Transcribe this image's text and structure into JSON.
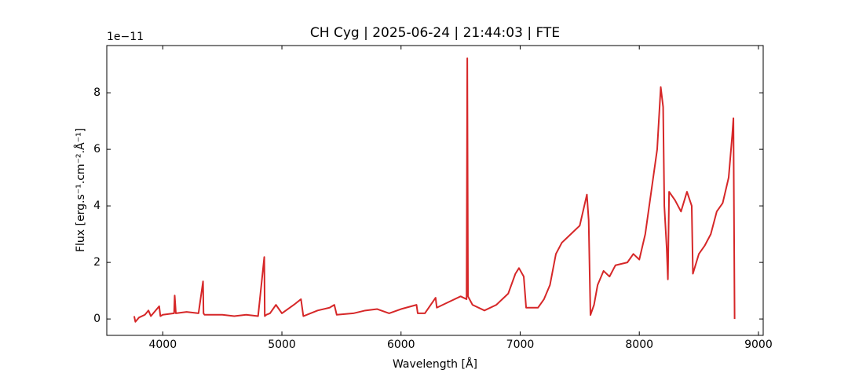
{
  "chart_data": {
    "type": "line",
    "title": "CH Cyg | 2025-06-24 | 21:44:03 | FTE",
    "x_label": "Wavelength [Å]",
    "y_label": "Flux [erg.s⁻¹.cm⁻².Å⁻¹]",
    "y_offset_label": "1e−11",
    "color": "#d62728",
    "x": [
      3760,
      3770,
      3800,
      3850,
      3880,
      3900,
      3970,
      3980,
      4000,
      4095,
      4100,
      4110,
      4200,
      4300,
      4338,
      4342,
      4350,
      4400,
      4500,
      4600,
      4700,
      4800,
      4852,
      4856,
      4870,
      4900,
      4950,
      5000,
      5100,
      5160,
      5180,
      5300,
      5400,
      5440,
      5460,
      5600,
      5700,
      5800,
      5900,
      6000,
      6130,
      6140,
      6200,
      6290,
      6300,
      6400,
      6500,
      6550,
      6556,
      6562,
      6600,
      6700,
      6800,
      6900,
      6960,
      6990,
      7030,
      7050,
      7100,
      7150,
      7200,
      7250,
      7300,
      7350,
      7400,
      7450,
      7500,
      7560,
      7575,
      7590,
      7620,
      7650,
      7700,
      7750,
      7800,
      7900,
      7950,
      8000,
      8050,
      8100,
      8150,
      8180,
      8200,
      8210,
      8230,
      8240,
      8250,
      8300,
      8350,
      8400,
      8440,
      8450,
      8500,
      8550,
      8600,
      8650,
      8700,
      8750,
      8780,
      8790,
      8800
    ],
    "values": [
      0.1,
      -0.1,
      0.05,
      0.15,
      0.3,
      0.1,
      0.45,
      0.1,
      0.15,
      0.2,
      0.83,
      0.2,
      0.25,
      0.2,
      1.33,
      0.2,
      0.15,
      0.15,
      0.15,
      0.1,
      0.15,
      0.1,
      2.19,
      0.1,
      0.15,
      0.2,
      0.5,
      0.2,
      0.5,
      0.7,
      0.1,
      0.3,
      0.4,
      0.5,
      0.15,
      0.2,
      0.3,
      0.35,
      0.2,
      0.35,
      0.5,
      0.2,
      0.2,
      0.75,
      0.4,
      0.6,
      0.8,
      0.7,
      9.22,
      0.8,
      0.5,
      0.3,
      0.5,
      0.9,
      1.6,
      1.8,
      1.5,
      0.4,
      0.4,
      0.4,
      0.7,
      1.2,
      2.3,
      2.7,
      2.9,
      3.1,
      3.3,
      4.4,
      3.5,
      0.14,
      0.5,
      1.2,
      1.7,
      1.5,
      1.9,
      2.0,
      2.3,
      2.1,
      3.0,
      4.5,
      6.0,
      8.2,
      7.5,
      4.0,
      2.5,
      1.4,
      4.5,
      4.2,
      3.8,
      4.5,
      4.0,
      1.6,
      2.3,
      2.6,
      3.0,
      3.8,
      4.1,
      5.0,
      6.5,
      7.1,
      0.0
    ],
    "xlim": [
      3530,
      9040
    ],
    "ylim": [
      -0.58,
      9.67
    ],
    "xticks": [
      4000,
      5000,
      6000,
      7000,
      8000,
      9000
    ],
    "yticks": [
      0,
      2,
      4,
      6,
      8
    ],
    "grid": false
  }
}
